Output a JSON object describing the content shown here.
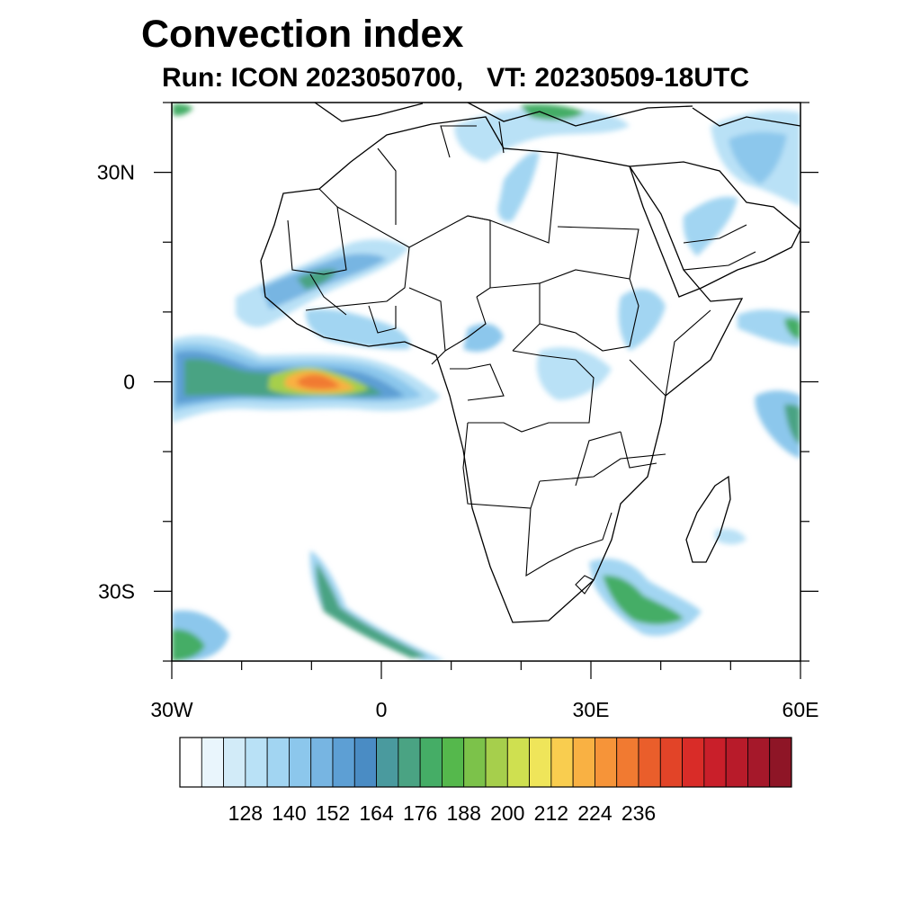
{
  "title": "Convection index",
  "subtitle": {
    "run_label": "Run:",
    "run_value": "ICON 2023050700,",
    "vt_label": "VT:",
    "vt_value": "20230509-18UTC"
  },
  "map": {
    "region": "Africa",
    "lon_range": [
      -30,
      60
    ],
    "lat_range": [
      -40,
      40
    ],
    "x_ticks": [
      {
        "lon": -30,
        "label": "30W"
      },
      {
        "lon": 0,
        "label": "0"
      },
      {
        "lon": 30,
        "label": "30E"
      },
      {
        "lon": 60,
        "label": "60E"
      }
    ],
    "y_ticks": [
      {
        "lat": 30,
        "label": "30N"
      },
      {
        "lat": 0,
        "label": "0"
      },
      {
        "lat": -30,
        "label": "30S"
      }
    ],
    "minor_lon_step": 10,
    "minor_lat_step": 10
  },
  "colorbar": {
    "levels": [
      128,
      140,
      152,
      164,
      176,
      188,
      200,
      212,
      224,
      236
    ],
    "colors": [
      "#ffffff",
      "#e9f5fc",
      "#d2ebf8",
      "#b9e1f6",
      "#a2d5f2",
      "#8cc7ec",
      "#77b5e2",
      "#5d9fd4",
      "#4a8cc4",
      "#4a9a9e",
      "#4aa383",
      "#45ad66",
      "#55b84c",
      "#7cc24a",
      "#a6cf4c",
      "#cfe050",
      "#efe55a",
      "#f9cd4f",
      "#f9b143",
      "#f69439",
      "#f17a31",
      "#ea5e2b",
      "#e24428",
      "#d92c28",
      "#c91f2a",
      "#b81b2a",
      "#a5182a",
      "#8e1526"
    ]
  },
  "colors": {
    "land_outline": "#000000",
    "frame": "#000000"
  }
}
